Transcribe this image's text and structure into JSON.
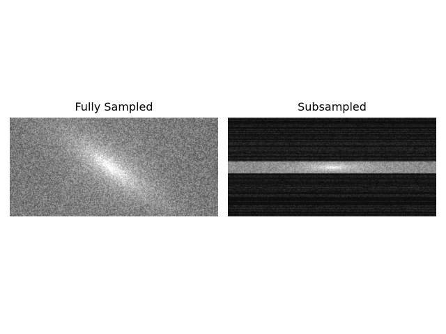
{
  "panels": [
    {
      "title": "Fully Sampled",
      "render": {
        "mode": "full",
        "background_level": 0.46,
        "center_glow": 0.55,
        "noise": 0.22,
        "streak_angle_deg": -35
      }
    },
    {
      "title": "Subsampled",
      "render": {
        "mode": "subsampled",
        "central_band_fraction": 0.1,
        "line_keep_fraction": 0.45,
        "dark_level": 0.06,
        "band_level": 0.55,
        "center_glow": 0.45
      }
    }
  ]
}
